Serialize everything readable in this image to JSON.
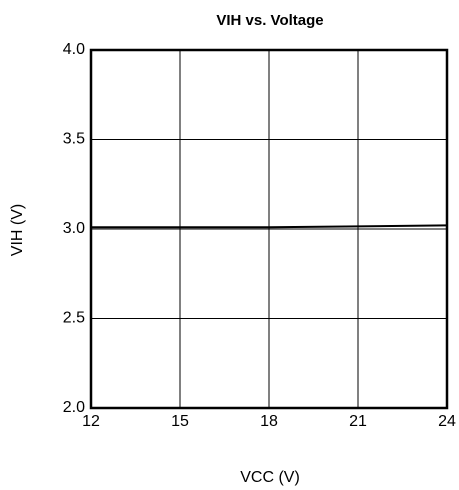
{
  "chart_data": {
    "type": "line",
    "title": "VIH vs. Voltage",
    "x_label": "VCC (V)",
    "y_label": "VIH (V)",
    "x": [
      12,
      15,
      18,
      21,
      24
    ],
    "series": [
      {
        "name": "VIH",
        "color": "#000000",
        "values": [
          3.01,
          3.01,
          3.01,
          3.015,
          3.02
        ]
      }
    ],
    "xlim": [
      12,
      24
    ],
    "xticks": [
      12,
      15,
      18,
      21,
      24
    ],
    "ylim": [
      2,
      4
    ],
    "yticks": [
      {
        "value": 2,
        "label": "2.0"
      },
      2.5,
      {
        "value": 3,
        "label": "3.0"
      },
      3.5,
      {
        "value": 4,
        "label": "4.0"
      }
    ],
    "grid": true
  }
}
